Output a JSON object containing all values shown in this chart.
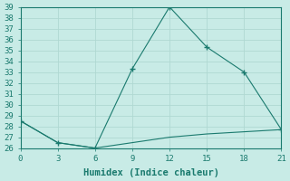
{
  "xlabel": "Humidex (Indice chaleur)",
  "x_main": [
    0,
    3,
    6,
    9,
    12,
    15,
    18,
    21
  ],
  "y_main": [
    28.5,
    26.5,
    26.0,
    33.3,
    39.0,
    35.3,
    33.0,
    27.7
  ],
  "x_second": [
    0,
    3,
    6,
    9,
    12,
    15,
    18,
    21
  ],
  "y_second": [
    28.5,
    26.5,
    26.0,
    26.5,
    27.0,
    27.3,
    27.5,
    27.7
  ],
  "line_color": "#1a7a6e",
  "bg_color": "#c8ebe6",
  "grid_color": "#b0d8d2",
  "ylim": [
    26,
    39
  ],
  "xlim": [
    0,
    21
  ],
  "yticks": [
    26,
    27,
    28,
    29,
    30,
    31,
    32,
    33,
    34,
    35,
    36,
    37,
    38,
    39
  ],
  "xticks": [
    0,
    3,
    6,
    9,
    12,
    15,
    18,
    21
  ],
  "tick_fontsize": 6.5,
  "label_fontsize": 7.5
}
